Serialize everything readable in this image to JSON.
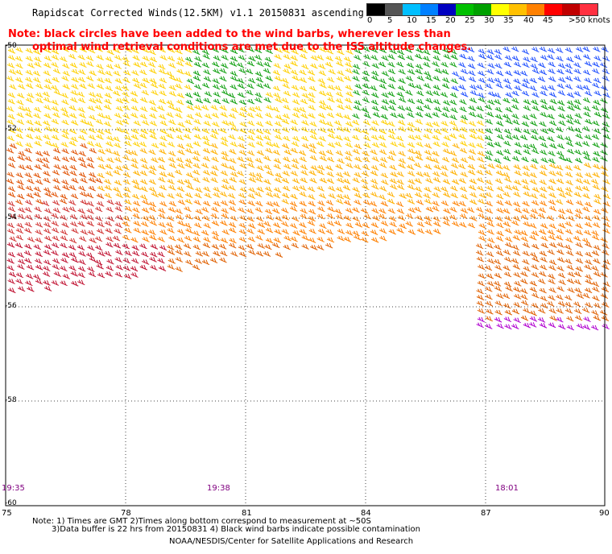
{
  "title": "Rapidscat Corrected Winds(12.5KM) v1.1 20150831 ascending",
  "note_line1": "Note: black circles have been added to the wind barbs, wherever less than",
  "note_line2": "optimal wind retrieval conditions are met due to the ISS altitude changes.",
  "legend": {
    "colors": [
      "#000000",
      "#555555",
      "#00bfff",
      "#0080ff",
      "#0000c0",
      "#00c000",
      "#00a000",
      "#ffff00",
      "#ffc000",
      "#ff8000",
      "#ff0000",
      "#c00000",
      "#ff3040",
      "#804000",
      "#b05020",
      "#ff00ff",
      "#c000ff",
      "#8000a0"
    ],
    "labels": [
      "0",
      "5",
      "10",
      "15",
      "20",
      "25",
      "30",
      "35",
      "40",
      "45",
      ">50 knots"
    ]
  },
  "axes": {
    "x_ticks": [
      "75",
      "78",
      "81",
      "84",
      "87",
      "90"
    ],
    "y_ticks": [
      "-50",
      "-52",
      "-54",
      "-56",
      "-58",
      "-60"
    ]
  },
  "times": [
    "19:35",
    "19:38",
    "18:01"
  ],
  "footer": {
    "line1": "Note: 1) Times are GMT 2)Times along bottom correspond to measurement at ~50S",
    "line2": "3)Data buffer is 22 hrs from 20150831 4) Black wind barbs indicate possible contamination",
    "line3": "NOAA/NESDIS/Center for Satellite Applications and Research"
  }
}
